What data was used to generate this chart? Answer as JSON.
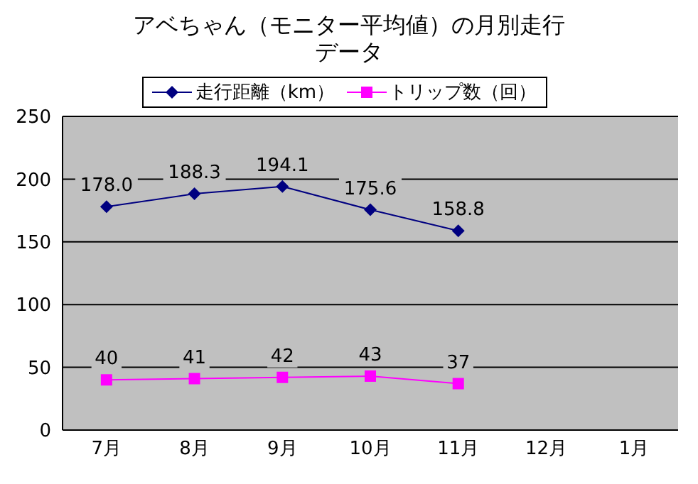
{
  "chart_data": {
    "type": "line",
    "title": "アベちゃん（モニター平均値）の月別走行データ",
    "categories": [
      "7月",
      "8月",
      "9月",
      "10月",
      "11月",
      "12月",
      "1月"
    ],
    "series": [
      {
        "name": "走行距離（km）",
        "color": "#000080",
        "marker": "diamond",
        "values": [
          178.0,
          188.3,
          194.1,
          175.6,
          158.8,
          null,
          null
        ],
        "value_labels": [
          "178.0",
          "188.3",
          "194.1",
          "175.6",
          "158.8",
          null,
          null
        ]
      },
      {
        "name": "トリップ数（回）",
        "color": "#ff00ff",
        "marker": "square",
        "values": [
          40,
          41,
          42,
          43,
          37,
          null,
          null
        ]
      }
    ],
    "data_labels": true,
    "ylim": [
      0,
      250
    ],
    "yticks": [
      0,
      50,
      100,
      150,
      200,
      250
    ],
    "grid": "y",
    "legend": "top"
  }
}
